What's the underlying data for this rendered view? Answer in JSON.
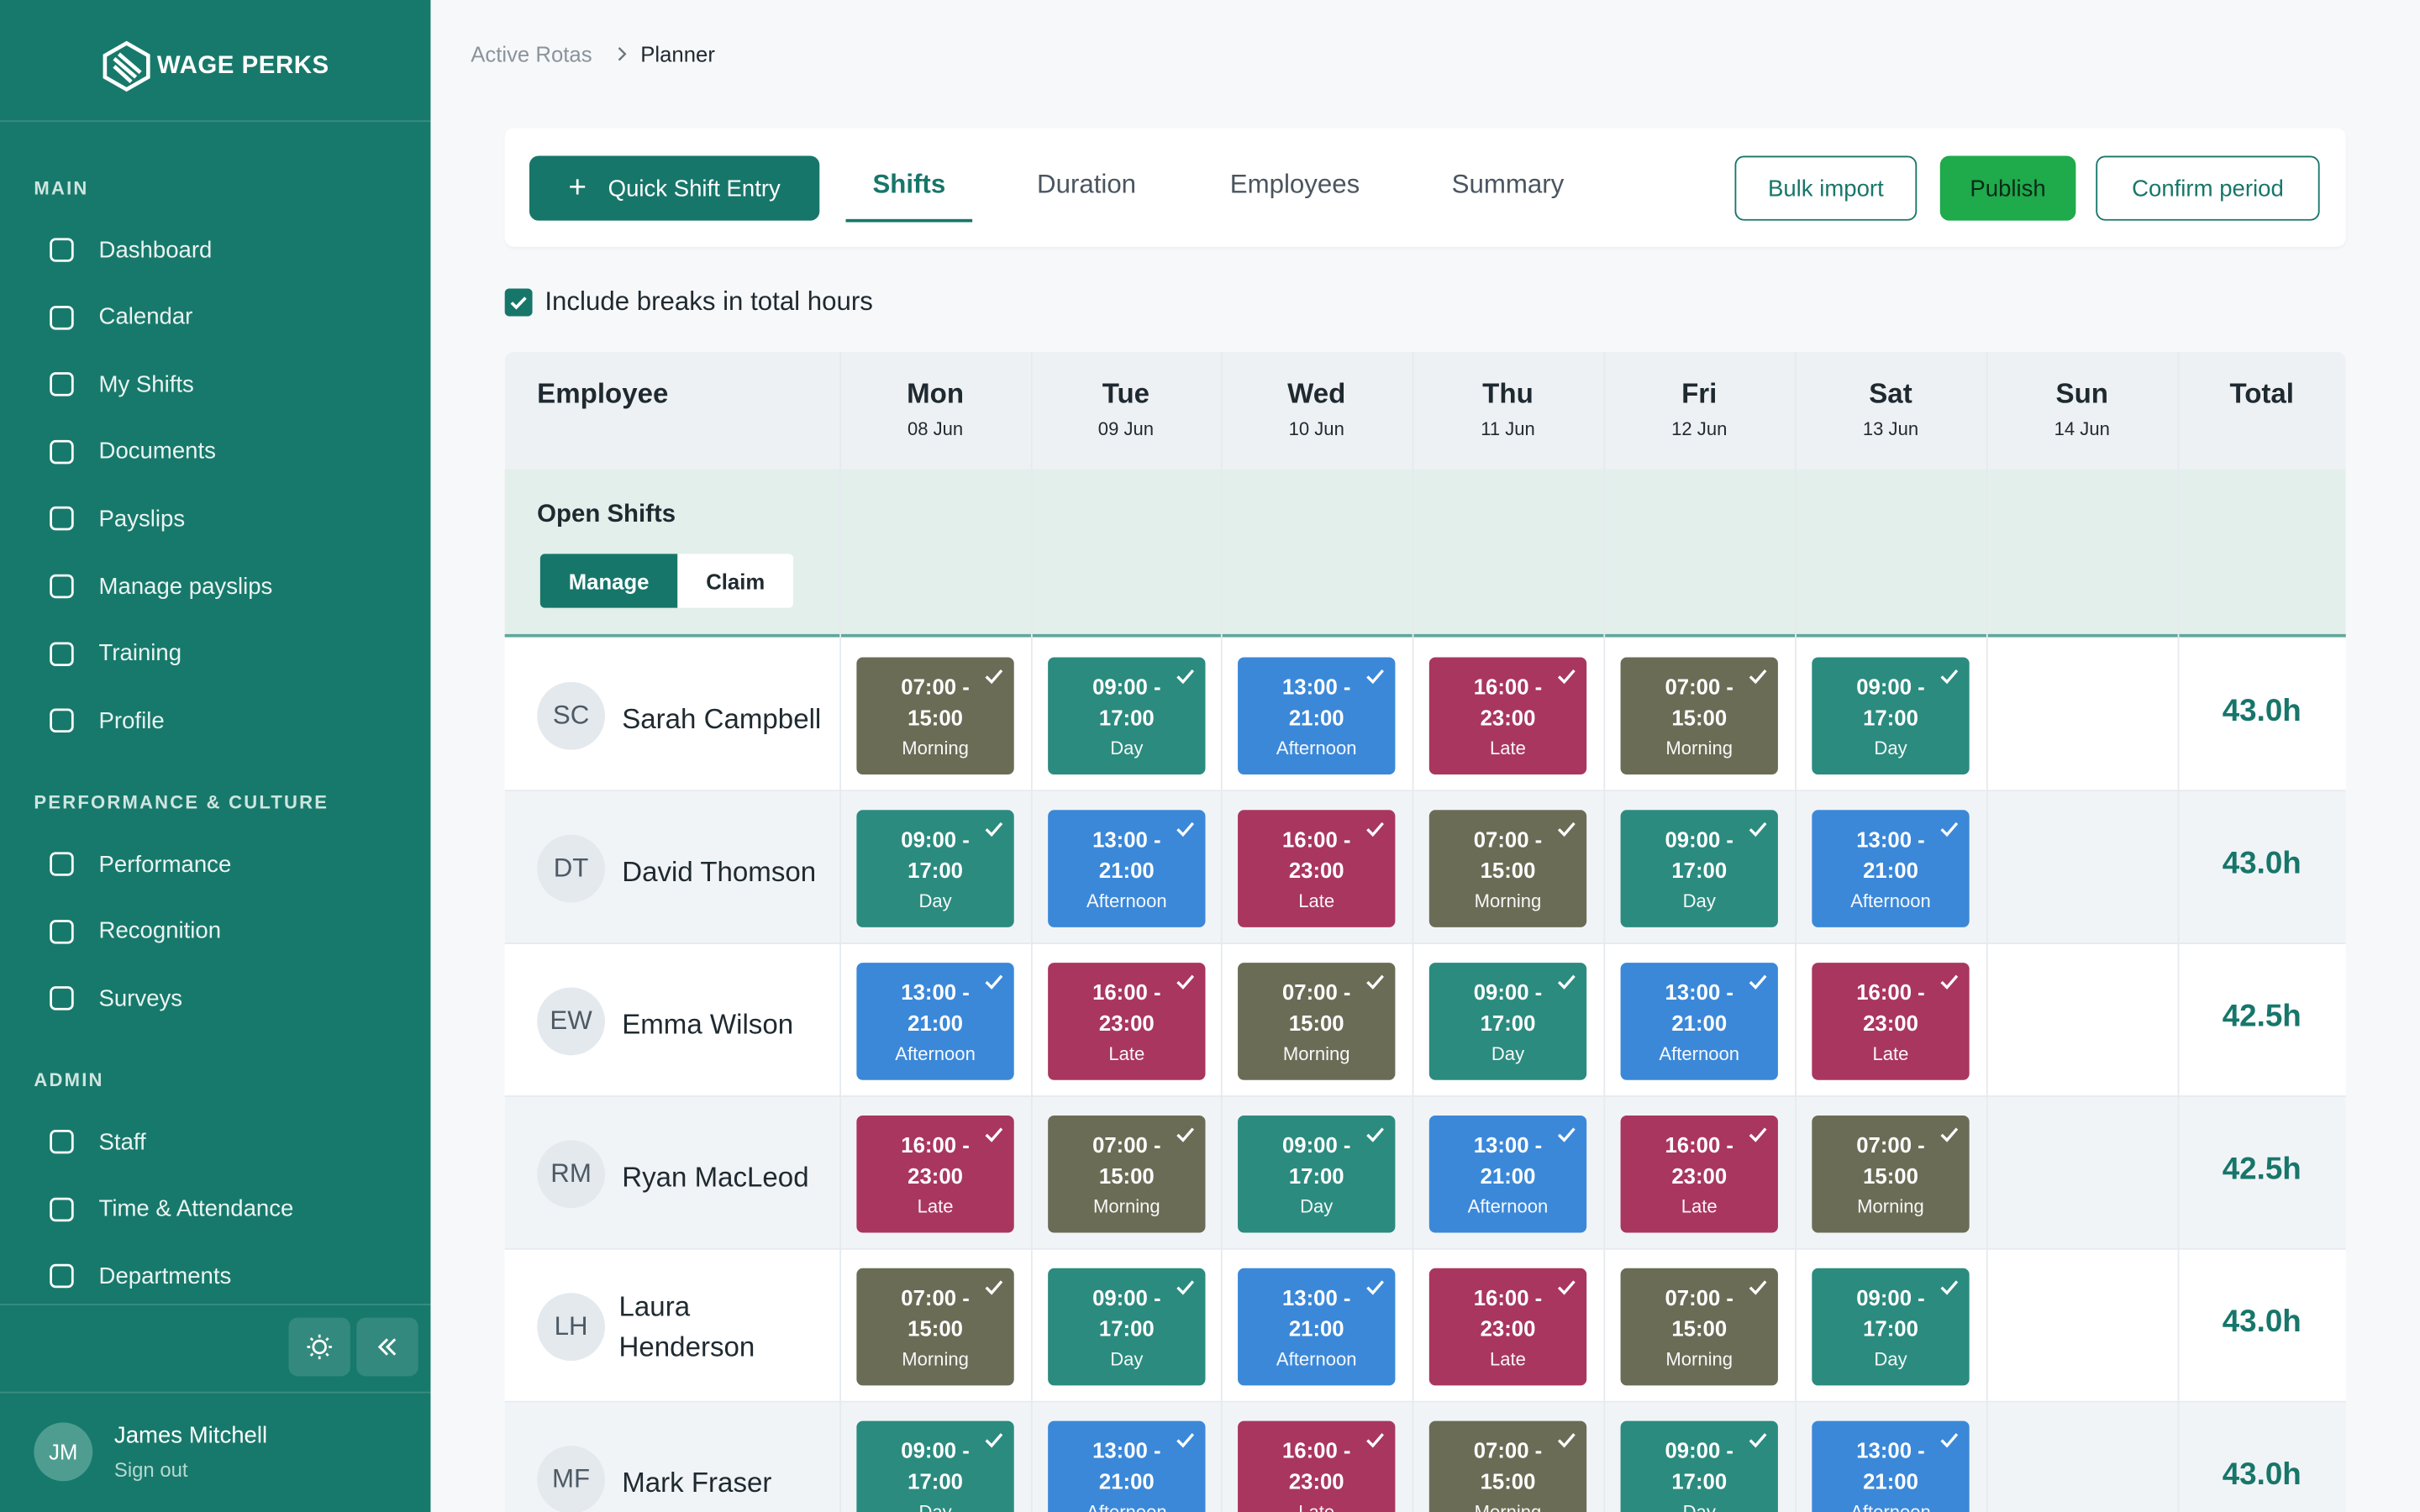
{
  "brand": "WAGE PERKS",
  "sidebar": {
    "sections": [
      {
        "title": "MAIN",
        "items": [
          "Dashboard",
          "Calendar",
          "My Shifts",
          "Documents",
          "Payslips",
          "Manage payslips",
          "Training",
          "Profile"
        ]
      },
      {
        "title": "PERFORMANCE & CULTURE",
        "items": [
          "Performance",
          "Recognition",
          "Surveys"
        ]
      },
      {
        "title": "ADMIN",
        "items": [
          "Staff",
          "Time & Attendance",
          "Departments"
        ]
      }
    ],
    "user": {
      "initials": "JM",
      "name": "James Mitchell",
      "action": "Sign out"
    }
  },
  "breadcrumb": [
    "Active Rotas",
    "Planner"
  ],
  "toolbar": {
    "quick_entry": "Quick Shift Entry",
    "tabs": [
      "Shifts",
      "Duration",
      "Employees",
      "Summary"
    ],
    "actions": [
      "Bulk import",
      "Publish",
      "Confirm period"
    ]
  },
  "include_breaks": "Include breaks in total hours",
  "shift_types": {
    "Morning": {
      "start": "07:00 -",
      "end": "15:00"
    },
    "Day": {
      "start": "09:00 -",
      "end": "17:00"
    },
    "Afternoon": {
      "start": "13:00 -",
      "end": "21:00"
    },
    "Late": {
      "start": "16:00 -",
      "end": "23:00"
    }
  },
  "table": {
    "employee_header": "Employee",
    "total_header": "Total",
    "days": [
      {
        "name": "Mon",
        "date": "08 Jun"
      },
      {
        "name": "Tue",
        "date": "09 Jun"
      },
      {
        "name": "Wed",
        "date": "10 Jun"
      },
      {
        "name": "Thu",
        "date": "11 Jun"
      },
      {
        "name": "Fri",
        "date": "12 Jun"
      },
      {
        "name": "Sat",
        "date": "13 Jun"
      },
      {
        "name": "Sun",
        "date": "14 Jun"
      }
    ],
    "open_shifts": {
      "label": "Open Shifts",
      "buttons": [
        "Manage",
        "Claim"
      ]
    },
    "rows": [
      {
        "initials": "SC",
        "name": "Sarah Campbell",
        "shifts": [
          "Morning",
          "Day",
          "Afternoon",
          "Late",
          "Morning",
          "Day",
          null
        ],
        "total": "43.0h"
      },
      {
        "initials": "DT",
        "name": "David Thomson",
        "shifts": [
          "Day",
          "Afternoon",
          "Late",
          "Morning",
          "Day",
          "Afternoon",
          null
        ],
        "total": "43.0h"
      },
      {
        "initials": "EW",
        "name": "Emma Wilson",
        "shifts": [
          "Afternoon",
          "Late",
          "Morning",
          "Day",
          "Afternoon",
          "Late",
          null
        ],
        "total": "42.5h"
      },
      {
        "initials": "RM",
        "name": "Ryan MacLeod",
        "shifts": [
          "Late",
          "Morning",
          "Day",
          "Afternoon",
          "Late",
          "Morning",
          null
        ],
        "total": "42.5h"
      },
      {
        "initials": "LH",
        "name": "Laura Henderson",
        "shifts": [
          "Morning",
          "Day",
          "Afternoon",
          "Late",
          "Morning",
          "Day",
          null
        ],
        "total": "43.0h"
      },
      {
        "initials": "MF",
        "name": "Mark Fraser",
        "shifts": [
          "Day",
          "Afternoon",
          "Late",
          "Morning",
          "Day",
          "Afternoon",
          null
        ],
        "total": "43.0h"
      }
    ]
  }
}
